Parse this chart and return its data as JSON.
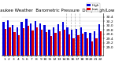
{
  "title": "Milwaukee Weather  Barometric Pressure  Daily High/Low",
  "bar_width": 0.4,
  "background_color": "#ffffff",
  "grid_color": "#cccccc",
  "high_color": "#0000dd",
  "low_color": "#dd0000",
  "legend_high": "High",
  "legend_low": "Low",
  "days": [
    1,
    2,
    3,
    4,
    5,
    6,
    7,
    8,
    9,
    10,
    11,
    12,
    13,
    14,
    15,
    16,
    17,
    18,
    19,
    20,
    21,
    22
  ],
  "high_vals": [
    30.15,
    30.25,
    30.02,
    29.9,
    30.18,
    30.3,
    30.08,
    30.2,
    30.1,
    30.02,
    29.82,
    29.9,
    30.05,
    30.15,
    29.9,
    29.8,
    29.85,
    29.9,
    29.7,
    29.65,
    29.72,
    30.05
  ],
  "low_vals": [
    29.85,
    29.92,
    29.68,
    29.55,
    29.88,
    30.0,
    29.78,
    29.9,
    29.82,
    29.68,
    29.52,
    29.65,
    29.75,
    29.82,
    29.6,
    29.42,
    29.55,
    29.62,
    29.4,
    29.28,
    29.42,
    29.75
  ],
  "ylim_min": 28.6,
  "ylim_max": 30.55,
  "ytick_vals": [
    29.0,
    29.2,
    29.4,
    29.6,
    29.8,
    30.0,
    30.2,
    30.4
  ],
  "dashed_lines": [
    14.5,
    15.5,
    16.5,
    17.5
  ],
  "title_fontsize": 4.0,
  "tick_fontsize": 3.2,
  "legend_fontsize": 3.0
}
